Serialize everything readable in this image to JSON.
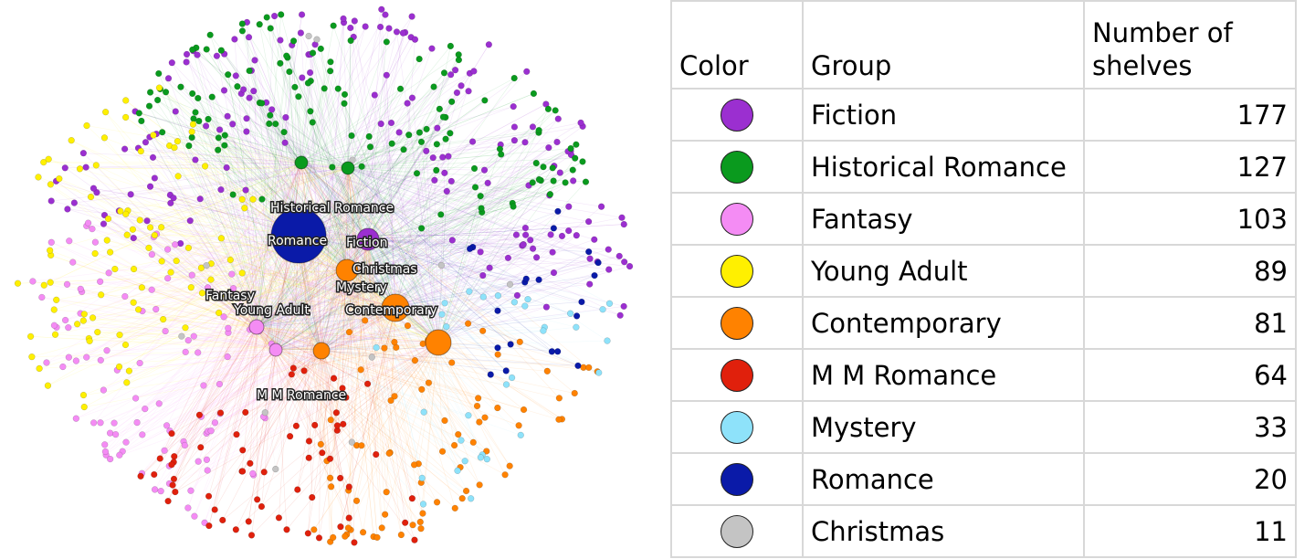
{
  "table": {
    "headers": [
      "Color",
      "Group",
      "Number of shelves"
    ],
    "rows": [
      {
        "group": "Fiction",
        "shelves": "177",
        "color": "#9b2fd0"
      },
      {
        "group": "Historical Romance",
        "shelves": "127",
        "color": "#0a9a1e"
      },
      {
        "group": "Fantasy",
        "shelves": "103",
        "color": "#f48cf4"
      },
      {
        "group": "Young Adult",
        "shelves": "89",
        "color": "#fff000"
      },
      {
        "group": "Contemporary",
        "shelves": "81",
        "color": "#ff8200"
      },
      {
        "group": "M M Romance",
        "shelves": "64",
        "color": "#e0200c"
      },
      {
        "group": "Mystery",
        "shelves": "33",
        "color": "#8ee2fa"
      },
      {
        "group": "Romance",
        "shelves": "20",
        "color": "#0a1aa8"
      },
      {
        "group": "Christmas",
        "shelves": "11",
        "color": "#c4c4c4"
      }
    ]
  },
  "network": {
    "labels": [
      "Historical Romance",
      "Romance",
      "Fiction",
      "Christmas",
      "Mystery",
      "Fantasy",
      "Young Adult",
      "Contemporary",
      "M M Romance"
    ]
  }
}
